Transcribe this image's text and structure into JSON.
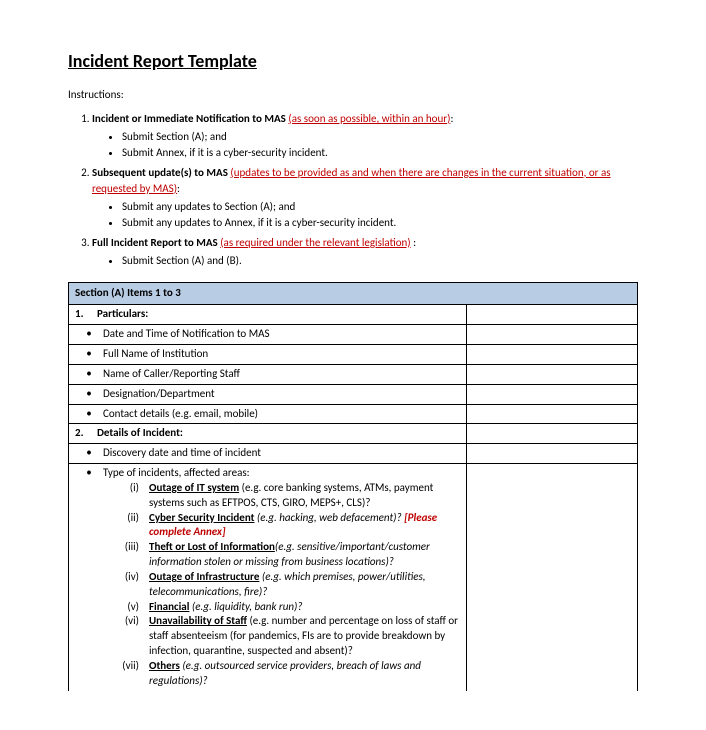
{
  "title": "Incident Report Template",
  "instructions_label": "Instructions:",
  "main_items": [
    {
      "bold_lead": "Incident or Immediate Notification to MAS",
      "red_note": "(as soon as possible, within an hour)",
      "colon": ":",
      "subs": [
        "Submit Section (A); and",
        "Submit Annex, if it is a cyber-security incident."
      ]
    },
    {
      "bold_lead": "Subsequent update(s) to MAS",
      "red_note": "(updates to be provided as and when there are changes in the current situation, or as requested by MAS)",
      "colon": ":",
      "subs": [
        "Submit any updates to Section (A); and",
        "Submit any updates to Annex, if it is a cyber-security incident."
      ]
    },
    {
      "bold_lead": "Full Incident Report to MAS",
      "red_note": "(as required under the relevant legislation)",
      "colon": " :",
      "subs": [
        "Submit Section (A) and (B)."
      ]
    }
  ],
  "table": {
    "section_header": "Section (A) Items 1 to 3",
    "row1": {
      "num": "1.",
      "text": "Particulars:"
    },
    "particulars": [
      "Date and Time of Notification to MAS",
      "Full Name of Institution",
      "Name of Caller/Reporting Staff",
      "Designation/Department",
      "Contact details (e.g. email, mobile)"
    ],
    "row2": {
      "num": "2.",
      "text": "Details of Incident:"
    },
    "details_first": "Discovery date and time of incident",
    "types_lead": "Type of incidents, affected areas:",
    "types": [
      {
        "r": "(i)",
        "u": "Outage of IT system",
        "rest": " (e.g. core banking systems, ATMs, payment systems such as EFTPOS, CTS, GIRO, MEPS+, CLS)?"
      },
      {
        "r": "(ii)",
        "u": "Cyber Security Incident",
        "rest_italic": " (e.g. hacking, web defacement)? ",
        "red": "[Please complete Annex]"
      },
      {
        "r": "(iii)",
        "u": "Theft or Lost of Information",
        "rest_italic": "(e.g. sensitive/important/customer information stolen or missing from business locations)?"
      },
      {
        "r": "(iv)",
        "u": "Outage of Infrastructure",
        "rest_italic": " (e.g. which premises, power/utilities, telecommunications, fire)?"
      },
      {
        "r": "(v)",
        "u": "Financial",
        "rest_italic": " (e.g. liquidity, bank run)?"
      },
      {
        "r": "(vi)",
        "u": "Unavailability of Staff",
        "rest": " (e.g. number and percentage on loss of staff or staff absenteeism (for pandemics, FIs are to provide breakdown by infection, quarantine, suspected and absent)?"
      },
      {
        "r": "(vii)",
        "u": "Others",
        "rest_italic": " (e.g. outsourced service providers, breach of laws and regulations)?"
      }
    ]
  }
}
